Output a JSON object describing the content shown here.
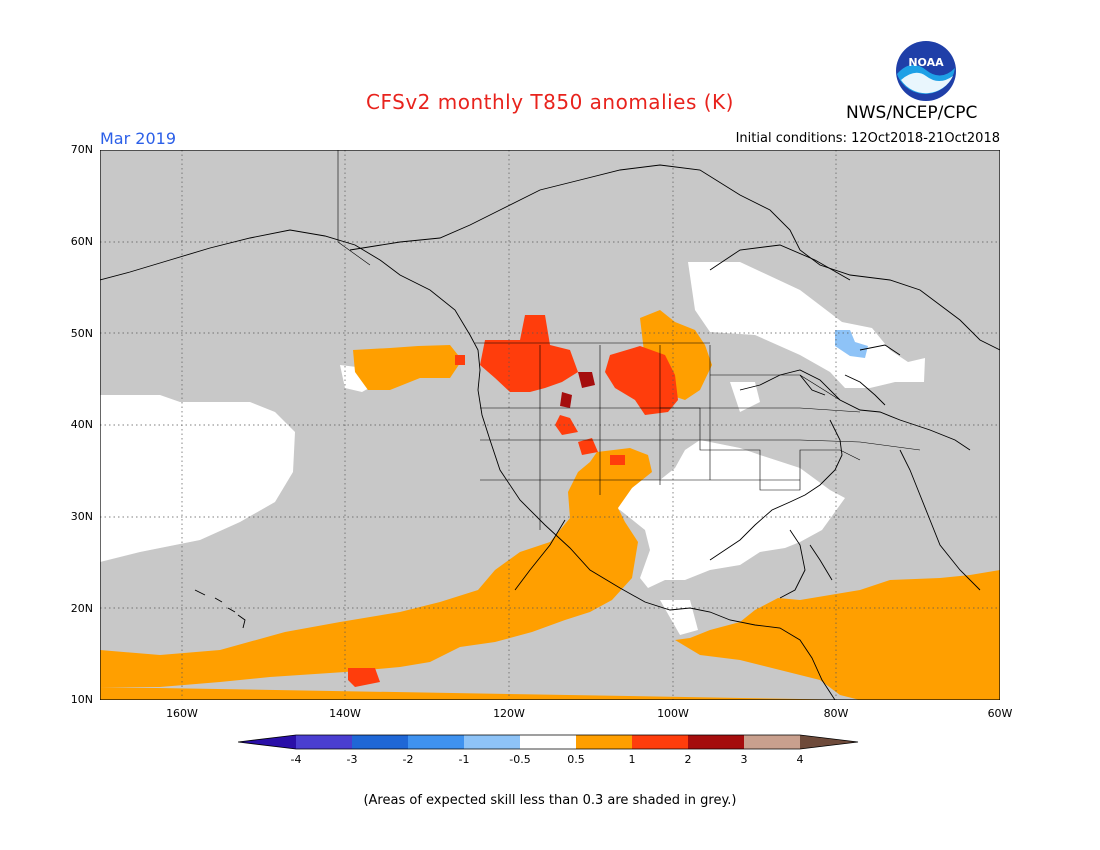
{
  "header": {
    "title": "CFSv2 monthly T850 anomalies (K)",
    "agency": "NWS/NCEP/CPC",
    "period": "Mar 2019",
    "initial_conditions": "Initial conditions: 12Oct2018-21Oct2018"
  },
  "logo": {
    "text": "NOAA",
    "icon": "noaa-logo-icon"
  },
  "axes": {
    "lat_labels": [
      "70N",
      "60N",
      "50N",
      "40N",
      "30N",
      "20N",
      "10N"
    ],
    "lon_labels": [
      "160W",
      "140W",
      "120W",
      "100W",
      "80W",
      "60W"
    ],
    "lat_range": [
      10,
      70
    ],
    "lon_range": [
      -170,
      -60
    ]
  },
  "colorbar": {
    "labels": [
      "-4",
      "-3",
      "-2",
      "-1",
      "-0.5",
      "0.5",
      "1",
      "2",
      "3",
      "4"
    ],
    "colors": [
      "#2a0fa8",
      "#4a3ed0",
      "#1f67d6",
      "#3f92ef",
      "#8ec3f7",
      "#ffffff",
      "#ff9f00",
      "#ff3d0c",
      "#a50d0d",
      "#c9a08e",
      "#6e4a3a"
    ]
  },
  "map": {
    "low_skill_color": "#c8c8c8",
    "ocean_color": "#c8c8c8"
  },
  "footnote": "(Areas of expected skill less than 0.3 are shaded in grey.)"
}
